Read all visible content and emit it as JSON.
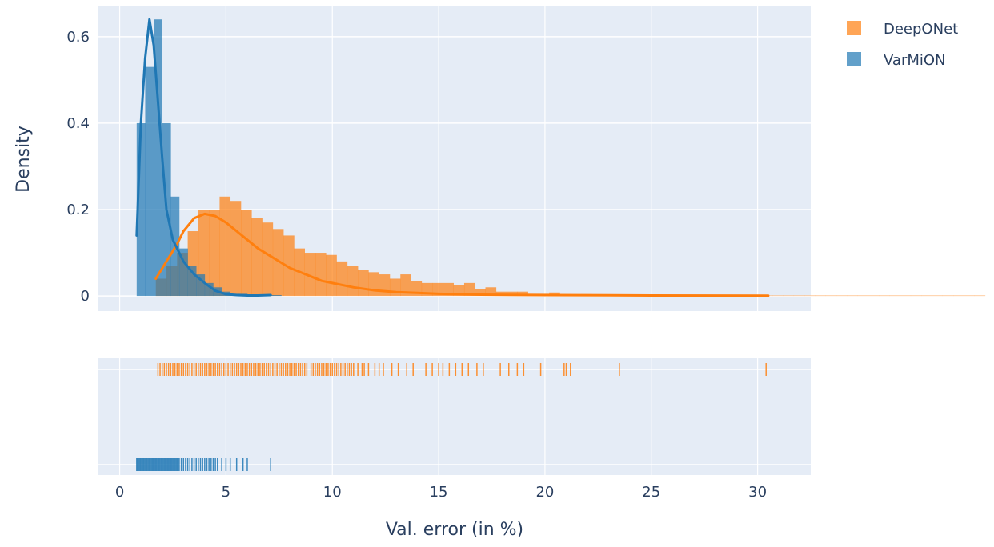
{
  "chart_data": {
    "type": "distplot",
    "xlabel": "Val. error (in %)",
    "ylabel": "Density",
    "xlim": [
      -1,
      32.5
    ],
    "ylim": [
      -0.035,
      0.67
    ],
    "x_ticks": [
      0,
      5,
      10,
      15,
      20,
      25,
      30
    ],
    "y_ticks": [
      0,
      0.2,
      0.4,
      0.6
    ],
    "y_tick_labels": [
      "0",
      "0.2",
      "0.4",
      "0.6"
    ],
    "legend": {
      "placement": "top-right",
      "entries": [
        "DeepONet",
        "VarMiON"
      ]
    },
    "series": [
      {
        "name": "DeepONet",
        "color": "#ff7f0e",
        "histogram": {
          "bin_width": 0.5,
          "bin_start": 1.7,
          "heights": [
            0.04,
            0.07,
            0.1,
            0.15,
            0.2,
            0.2,
            0.23,
            0.22,
            0.2,
            0.18,
            0.17,
            0.155,
            0.14,
            0.11,
            0.1,
            0.1,
            0.095,
            0.08,
            0.07,
            0.06,
            0.055,
            0.05,
            0.04,
            0.05,
            0.035,
            0.03,
            0.03,
            0.03,
            0.025,
            0.03,
            0.015,
            0.02,
            0.01,
            0.01,
            0.01,
            0.005,
            0.005,
            0.008,
            0.004,
            0.003,
            0.004,
            0.002,
            0.003,
            0.002,
            0.002,
            0.002,
            0.001,
            0.001,
            0.001,
            0.001,
            0.001,
            0.001,
            0.001,
            0.001,
            0.001,
            0.001,
            0.001,
            0.001,
            0.001,
            0.001,
            0.001,
            0.001,
            0.001,
            0.001,
            0.001,
            0.001,
            0.001,
            0.001,
            0.001,
            0.001,
            0.001,
            0.001,
            0.001,
            0.001,
            0.001,
            0.001,
            0.001,
            0.001
          ]
        },
        "kde": {
          "x": [
            1.7,
            2.2,
            2.7,
            3.0,
            3.5,
            4.0,
            4.5,
            5.0,
            5.5,
            6.0,
            6.5,
            7.0,
            7.5,
            8.0,
            8.5,
            9.0,
            9.5,
            10.0,
            11.0,
            12.0,
            13.0,
            14.0,
            15.0,
            17.0,
            20.0,
            25.0,
            30.5
          ],
          "y": [
            0.04,
            0.08,
            0.12,
            0.15,
            0.18,
            0.19,
            0.185,
            0.17,
            0.15,
            0.13,
            0.11,
            0.095,
            0.08,
            0.065,
            0.055,
            0.045,
            0.035,
            0.03,
            0.02,
            0.013,
            0.009,
            0.007,
            0.005,
            0.003,
            0.002,
            0.001,
            0.0005
          ]
        },
        "rug": [
          1.8,
          1.9,
          2.0,
          2.1,
          2.2,
          2.3,
          2.4,
          2.5,
          2.6,
          2.7,
          2.8,
          2.9,
          3.0,
          3.1,
          3.2,
          3.3,
          3.4,
          3.5,
          3.6,
          3.7,
          3.8,
          3.9,
          4.0,
          4.1,
          4.2,
          4.3,
          4.4,
          4.5,
          4.6,
          4.7,
          4.8,
          4.9,
          5.0,
          5.1,
          5.2,
          5.3,
          5.4,
          5.5,
          5.6,
          5.7,
          5.8,
          5.9,
          6.0,
          6.1,
          6.2,
          6.3,
          6.4,
          6.5,
          6.6,
          6.7,
          6.8,
          6.9,
          7.0,
          7.1,
          7.2,
          7.3,
          7.4,
          7.5,
          7.6,
          7.7,
          7.8,
          7.9,
          8.0,
          8.1,
          8.2,
          8.3,
          8.4,
          8.5,
          8.6,
          8.7,
          8.8,
          9.0,
          9.1,
          9.2,
          9.3,
          9.4,
          9.5,
          9.6,
          9.7,
          9.8,
          9.9,
          10.0,
          10.1,
          10.2,
          10.3,
          10.4,
          10.5,
          10.6,
          10.7,
          10.8,
          10.9,
          11.0,
          11.2,
          11.4,
          11.5,
          11.7,
          12.0,
          12.2,
          12.4,
          12.8,
          13.1,
          13.5,
          13.8,
          14.4,
          14.7,
          15.0,
          15.2,
          15.5,
          15.8,
          16.1,
          16.4,
          16.8,
          17.1,
          17.9,
          18.3,
          18.7,
          19.0,
          19.8,
          20.9,
          21.0,
          21.2,
          23.5,
          30.4
        ]
      },
      {
        "name": "VarMiON",
        "color": "#1f77b4",
        "histogram": {
          "bin_width": 0.4,
          "bin_start": 0.8,
          "heights": [
            0.4,
            0.53,
            0.64,
            0.4,
            0.23,
            0.11,
            0.07,
            0.05,
            0.03,
            0.02,
            0.01,
            0.005,
            0.005,
            0.003,
            0.003,
            0.002,
            0.002
          ]
        },
        "kde": {
          "x": [
            0.8,
            1.0,
            1.2,
            1.4,
            1.6,
            1.8,
            2.0,
            2.2,
            2.5,
            3.0,
            3.5,
            4.0,
            4.5,
            5.0,
            5.5,
            6.0,
            6.5,
            7.1
          ],
          "y": [
            0.14,
            0.4,
            0.55,
            0.64,
            0.58,
            0.45,
            0.32,
            0.2,
            0.13,
            0.08,
            0.05,
            0.03,
            0.012,
            0.004,
            0.002,
            0.001,
            0.001,
            0.002
          ]
        },
        "rug": [
          0.8,
          0.85,
          0.9,
          0.95,
          1.0,
          1.05,
          1.1,
          1.15,
          1.2,
          1.25,
          1.3,
          1.35,
          1.4,
          1.45,
          1.5,
          1.55,
          1.6,
          1.65,
          1.7,
          1.75,
          1.8,
          1.85,
          1.9,
          1.95,
          2.0,
          2.05,
          2.1,
          2.15,
          2.2,
          2.25,
          2.3,
          2.35,
          2.4,
          2.45,
          2.5,
          2.55,
          2.6,
          2.65,
          2.7,
          2.75,
          2.8,
          2.9,
          3.0,
          3.1,
          3.2,
          3.3,
          3.4,
          3.5,
          3.6,
          3.7,
          3.8,
          3.9,
          4.0,
          4.1,
          4.2,
          4.3,
          4.4,
          4.5,
          4.6,
          4.8,
          5.0,
          5.2,
          5.5,
          5.8,
          6.0,
          7.1
        ]
      }
    ]
  }
}
